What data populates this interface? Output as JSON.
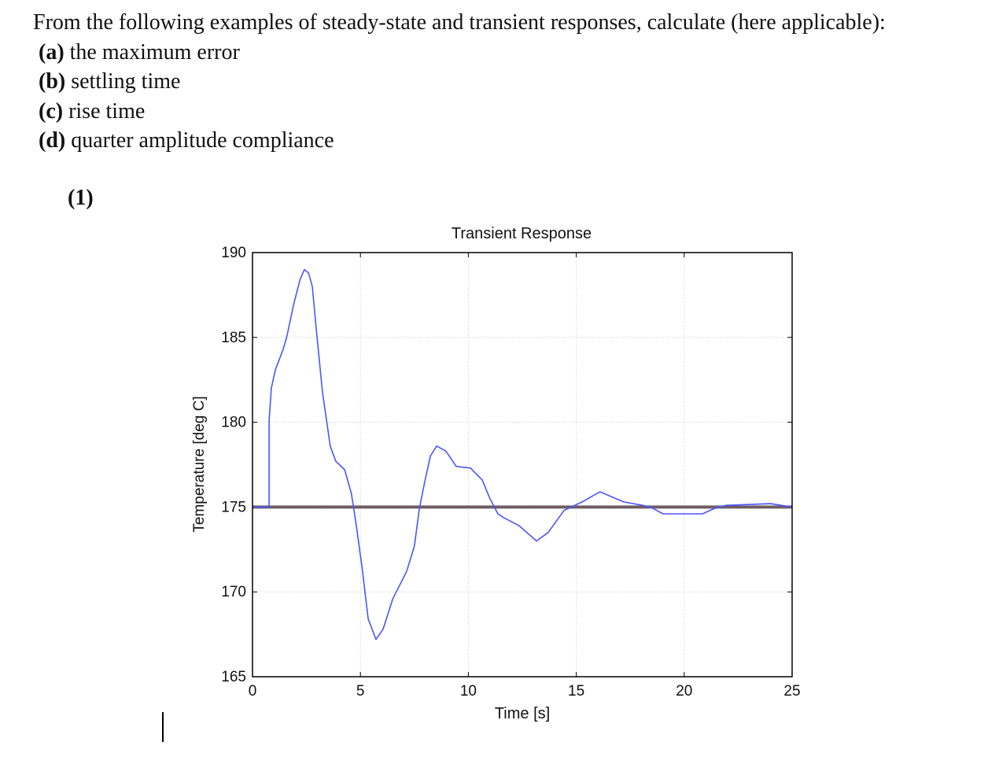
{
  "question": {
    "intro": "From the following examples of steady-state and transient responses, calculate (here applicable):",
    "items": [
      {
        "label": "(a)",
        "text": "the maximum error"
      },
      {
        "label": "(b)",
        "text": "settling time"
      },
      {
        "label": "(c)",
        "text": "rise time"
      },
      {
        "label": "(d)",
        "text": "quarter amplitude compliance"
      }
    ],
    "figure_label": "(1)"
  },
  "chart_data": {
    "type": "line",
    "title": "Transient Response",
    "xlabel": "Time [s]",
    "ylabel": "Temperature [deg C]",
    "xlim": [
      0,
      25
    ],
    "ylim": [
      165,
      190
    ],
    "xticks": [
      "0",
      "5",
      "10",
      "15",
      "20",
      "25"
    ],
    "yticks": [
      "165",
      "170",
      "175",
      "180",
      "185",
      "190"
    ],
    "grid": true,
    "colors": {
      "response": "#4a55ff",
      "setpoint": "#666666"
    },
    "setpoint": 175,
    "series": [
      {
        "x": [
          0,
          0.77,
          0.77,
          0.87,
          1.06,
          1.42,
          1.6,
          1.9,
          2.2,
          2.4,
          2.6,
          2.77,
          3.0,
          3.24,
          3.6,
          3.86,
          4.27,
          4.58,
          4.8,
          5.07,
          5.36,
          5.72,
          6.05,
          6.5,
          7.14,
          7.5,
          7.73,
          7.98,
          8.24,
          8.53,
          8.96,
          9.44,
          10.1,
          10.64,
          11.0,
          11.37,
          11.6,
          12.35,
          13.16,
          13.7,
          14.43,
          15.27,
          16.1,
          17.2,
          18.07,
          18.44,
          19.02,
          19.53,
          20.85,
          21.36,
          21.94,
          24.0,
          24.5,
          25
        ],
        "y": [
          175,
          175,
          180.1,
          182,
          183.1,
          184.3,
          185.1,
          186.9,
          188.4,
          189,
          188.8,
          188,
          184.9,
          181.8,
          178.6,
          177.7,
          177.2,
          175.8,
          174,
          171.5,
          168.4,
          167.2,
          167.8,
          169.6,
          171.2,
          172.7,
          174.9,
          176.5,
          178,
          178.6,
          178.3,
          177.4,
          177.3,
          176.6,
          175.5,
          174.6,
          174.4,
          173.9,
          173,
          173.5,
          174.8,
          175.3,
          175.9,
          175.3,
          175.1,
          175,
          174.6,
          174.6,
          174.6,
          174.9,
          175.1,
          175.2,
          175.1,
          175
        ]
      }
    ]
  }
}
